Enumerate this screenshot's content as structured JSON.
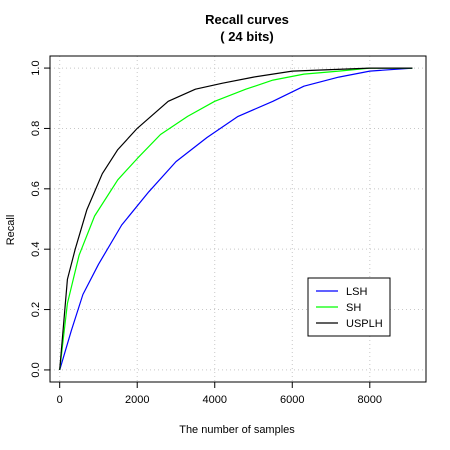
{
  "chart_data": {
    "type": "line",
    "title": "Recall curves",
    "subtitle": "( 24  bits)",
    "xlabel": "The number of samples",
    "ylabel": "Recall",
    "xlim": [
      -250,
      9450
    ],
    "ylim": [
      -0.04,
      1.04
    ],
    "xticks": [
      0,
      2000,
      4000,
      6000,
      8000
    ],
    "xtick_labels": [
      "0",
      "2000",
      "4000",
      "6000",
      "8000"
    ],
    "yticks": [
      0,
      0.2,
      0.4,
      0.6,
      0.8,
      1.0
    ],
    "ytick_labels": [
      "0.0",
      "0.2",
      "0.4",
      "0.6",
      "0.8",
      "1.0"
    ],
    "grid": true,
    "legend_position": "bottom-right",
    "series": [
      {
        "name": "LSH",
        "color": "#0000ff",
        "x": [
          0,
          300,
          600,
          1000,
          1600,
          2300,
          3000,
          3800,
          4600,
          5500,
          6300,
          7200,
          8000,
          9100
        ],
        "y": [
          0.0,
          0.13,
          0.25,
          0.35,
          0.48,
          0.59,
          0.69,
          0.77,
          0.84,
          0.89,
          0.94,
          0.97,
          0.99,
          1.0
        ]
      },
      {
        "name": "SH",
        "color": "#00ff00",
        "x": [
          0,
          200,
          500,
          900,
          1500,
          2000,
          2600,
          3300,
          4000,
          4800,
          5500,
          6300,
          7200,
          8000,
          9100
        ],
        "y": [
          0.0,
          0.22,
          0.38,
          0.51,
          0.63,
          0.7,
          0.78,
          0.84,
          0.89,
          0.93,
          0.96,
          0.98,
          0.99,
          1.0,
          1.0
        ]
      },
      {
        "name": "USPLH",
        "color": "#000000",
        "x": [
          0,
          200,
          400,
          700,
          1100,
          1500,
          2000,
          2800,
          3500,
          4200,
          5000,
          6000,
          7000,
          8000,
          9100
        ],
        "y": [
          0.0,
          0.3,
          0.4,
          0.53,
          0.65,
          0.73,
          0.8,
          0.89,
          0.93,
          0.95,
          0.97,
          0.99,
          0.995,
          1.0,
          1.0
        ]
      }
    ]
  }
}
